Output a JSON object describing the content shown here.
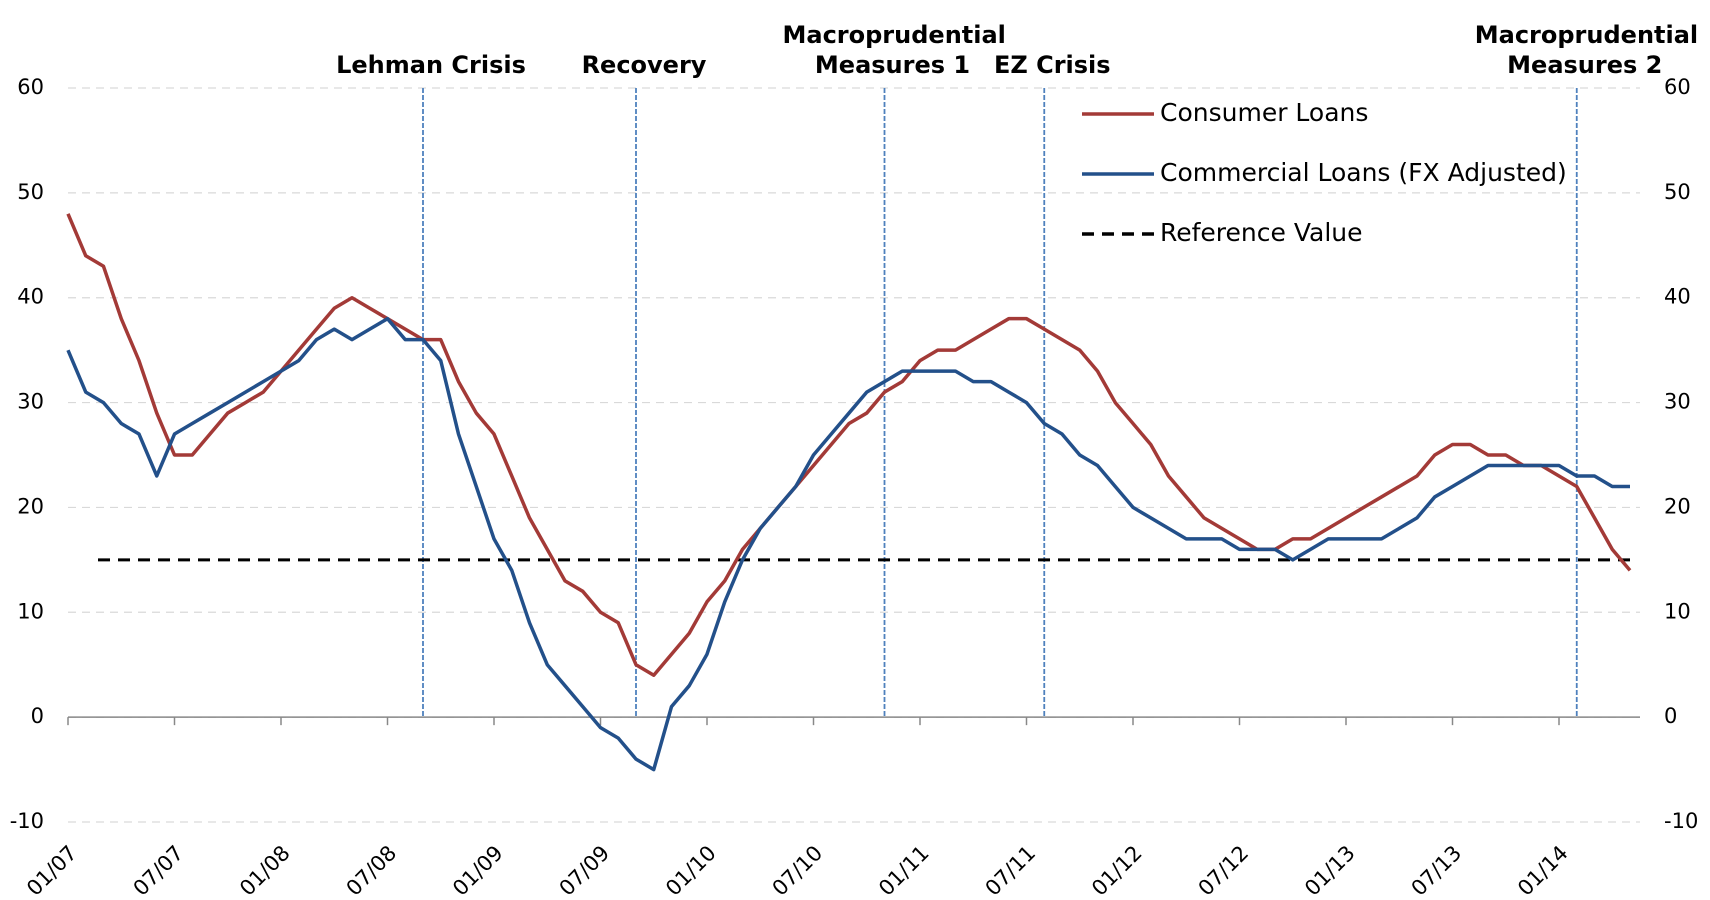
{
  "chart_data": {
    "type": "line",
    "x": [
      "01/07",
      "02/07",
      "03/07",
      "04/07",
      "05/07",
      "06/07",
      "07/07",
      "08/07",
      "09/07",
      "10/07",
      "11/07",
      "12/07",
      "01/08",
      "02/08",
      "03/08",
      "04/08",
      "05/08",
      "06/08",
      "07/08",
      "08/08",
      "09/08",
      "10/08",
      "11/08",
      "12/08",
      "01/09",
      "02/09",
      "03/09",
      "04/09",
      "05/09",
      "06/09",
      "07/09",
      "08/09",
      "09/09",
      "10/09",
      "11/09",
      "12/09",
      "01/10",
      "02/10",
      "03/10",
      "04/10",
      "05/10",
      "06/10",
      "07/10",
      "08/10",
      "09/10",
      "10/10",
      "11/10",
      "12/10",
      "01/11",
      "02/11",
      "03/11",
      "04/11",
      "05/11",
      "06/11",
      "07/11",
      "08/11",
      "09/11",
      "10/11",
      "11/11",
      "12/11",
      "01/12",
      "02/12",
      "03/12",
      "04/12",
      "05/12",
      "06/12",
      "07/12",
      "08/12",
      "09/12",
      "10/12",
      "11/12",
      "12/12",
      "01/13",
      "02/13",
      "03/13",
      "04/13",
      "05/13",
      "06/13",
      "07/13",
      "08/13",
      "09/13",
      "10/13",
      "11/13",
      "12/13",
      "01/14",
      "02/14",
      "03/14",
      "04/14",
      "05/14"
    ],
    "series": [
      {
        "name": "Consumer Loans",
        "color": "#a33a37",
        "values": [
          48,
          44,
          43,
          38,
          34,
          29,
          25,
          25,
          27,
          29,
          30,
          31,
          33,
          35,
          37,
          39,
          40,
          39,
          38,
          37,
          36,
          36,
          32,
          29,
          27,
          23,
          19,
          16,
          13,
          12,
          10,
          9,
          5,
          4,
          6,
          8,
          11,
          13,
          16,
          18,
          20,
          22,
          24,
          26,
          28,
          29,
          31,
          32,
          34,
          35,
          35,
          36,
          37,
          38,
          38,
          37,
          36,
          35,
          33,
          30,
          28,
          26,
          23,
          21,
          19,
          18,
          17,
          16,
          16,
          17,
          17,
          18,
          19,
          20,
          21,
          22,
          23,
          25,
          26,
          26,
          25,
          25,
          24,
          24,
          23,
          22,
          19,
          16,
          14
        ]
      },
      {
        "name": "Commercial Loans (FX Adjusted)",
        "color": "#23508a",
        "values": [
          35,
          31,
          30,
          28,
          27,
          23,
          27,
          28,
          29,
          30,
          31,
          32,
          33,
          34,
          36,
          37,
          36,
          37,
          38,
          36,
          36,
          34,
          27,
          22,
          17,
          14,
          9,
          5,
          3,
          1,
          -1,
          -2,
          -4,
          -5,
          1,
          3,
          6,
          11,
          15,
          18,
          20,
          22,
          25,
          27,
          29,
          31,
          32,
          33,
          33,
          33,
          33,
          32,
          32,
          31,
          30,
          28,
          27,
          25,
          24,
          22,
          20,
          19,
          18,
          17,
          17,
          17,
          16,
          16,
          16,
          15,
          16,
          17,
          17,
          17,
          17,
          18,
          19,
          21,
          22,
          23,
          24,
          24,
          24,
          24,
          24,
          23,
          23,
          22,
          22
        ]
      }
    ],
    "reference": {
      "name": "Reference Value",
      "value": 15,
      "color": "#000000"
    },
    "events": [
      {
        "label": "Lehman Crisis",
        "x": "09/08"
      },
      {
        "label": "Recovery",
        "x": "09/09"
      },
      {
        "label": "Macroprudential Measures 1",
        "x": "11/10"
      },
      {
        "label": "EZ Crisis",
        "x": "08/11"
      },
      {
        "label": "Macroprudential Measures 2",
        "x": "02/14"
      }
    ],
    "event_color": "#4f81bd",
    "xticks": [
      "01/07",
      "07/07",
      "01/08",
      "07/08",
      "01/09",
      "07/09",
      "01/10",
      "07/10",
      "01/11",
      "07/11",
      "01/12",
      "07/12",
      "01/13",
      "07/13",
      "01/14"
    ],
    "ylim": [
      -10,
      60
    ],
    "yticks": [
      -10,
      0,
      10,
      20,
      30,
      40,
      50,
      60
    ],
    "y2lim": [
      -10,
      60
    ],
    "y2ticks": [
      -10,
      0,
      10,
      20,
      30,
      40,
      50,
      60
    ],
    "grid": true,
    "legend": "top-right"
  }
}
